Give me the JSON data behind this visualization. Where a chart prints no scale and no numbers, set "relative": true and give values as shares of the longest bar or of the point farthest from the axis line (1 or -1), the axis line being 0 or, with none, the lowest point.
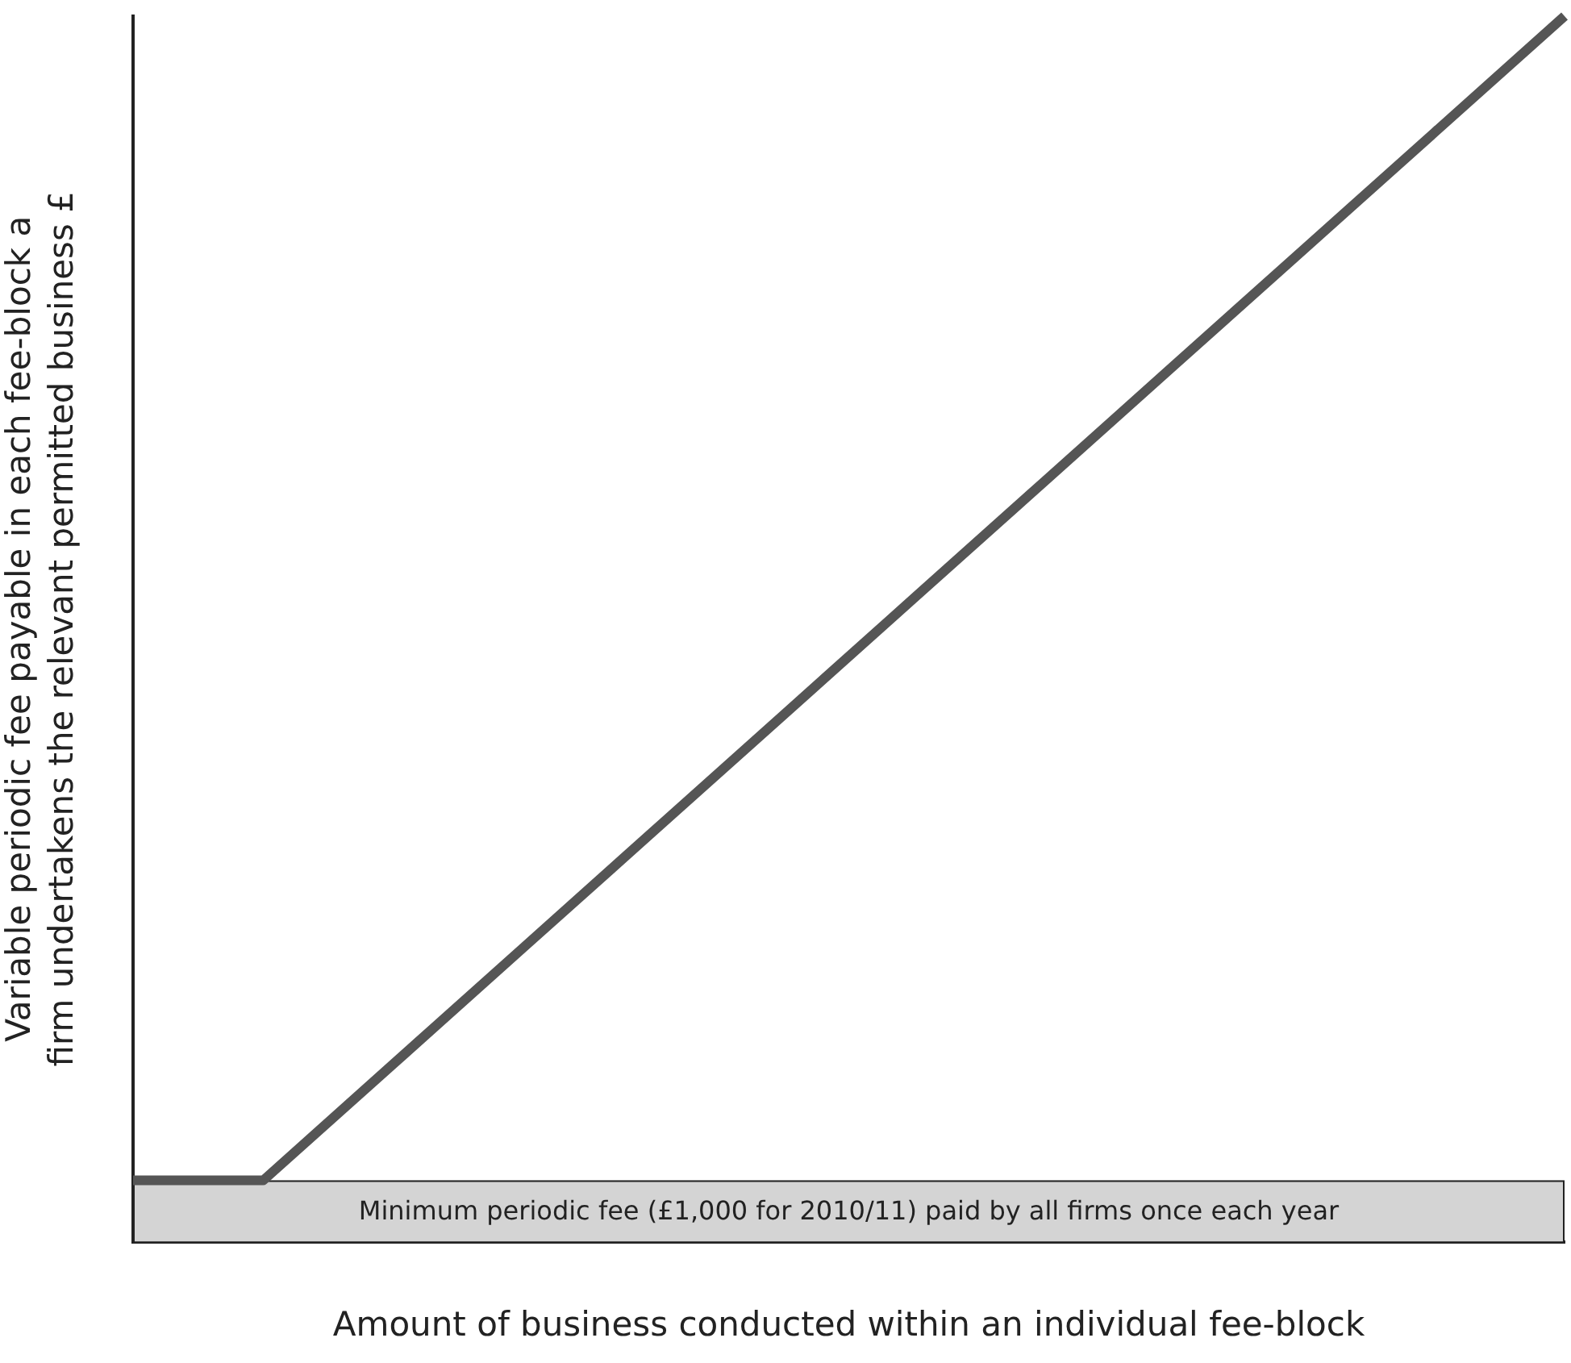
{
  "chart_data": {
    "type": "line",
    "relative": true,
    "xlabel": "Amount of business conducted within an individual fee-block",
    "ylabel": "Variable periodic fee payable in each fee-block a\nfirm undertakens the relevant permitted business £",
    "categories": [
      null,
      null,
      null,
      null,
      null,
      null,
      null,
      null,
      null,
      null,
      null,
      null
    ],
    "series": [
      {
        "color": "#555555",
        "values": [
          0.05,
          0.05,
          0.145,
          0.24,
          0.335,
          0.43,
          0.525,
          0.62,
          0.715,
          0.81,
          0.905,
          1
        ]
      }
    ],
    "bands": [
      {
        "axis": "y",
        "from": 0,
        "to": 0.05,
        "label": "Minimum periodic fee (£1,000 for 2010/11) paid by all firms once each year",
        "color": "#d4d4d4"
      }
    ],
    "grid": false,
    "legend": false,
    "marker": "none",
    "line_style": "solid"
  }
}
